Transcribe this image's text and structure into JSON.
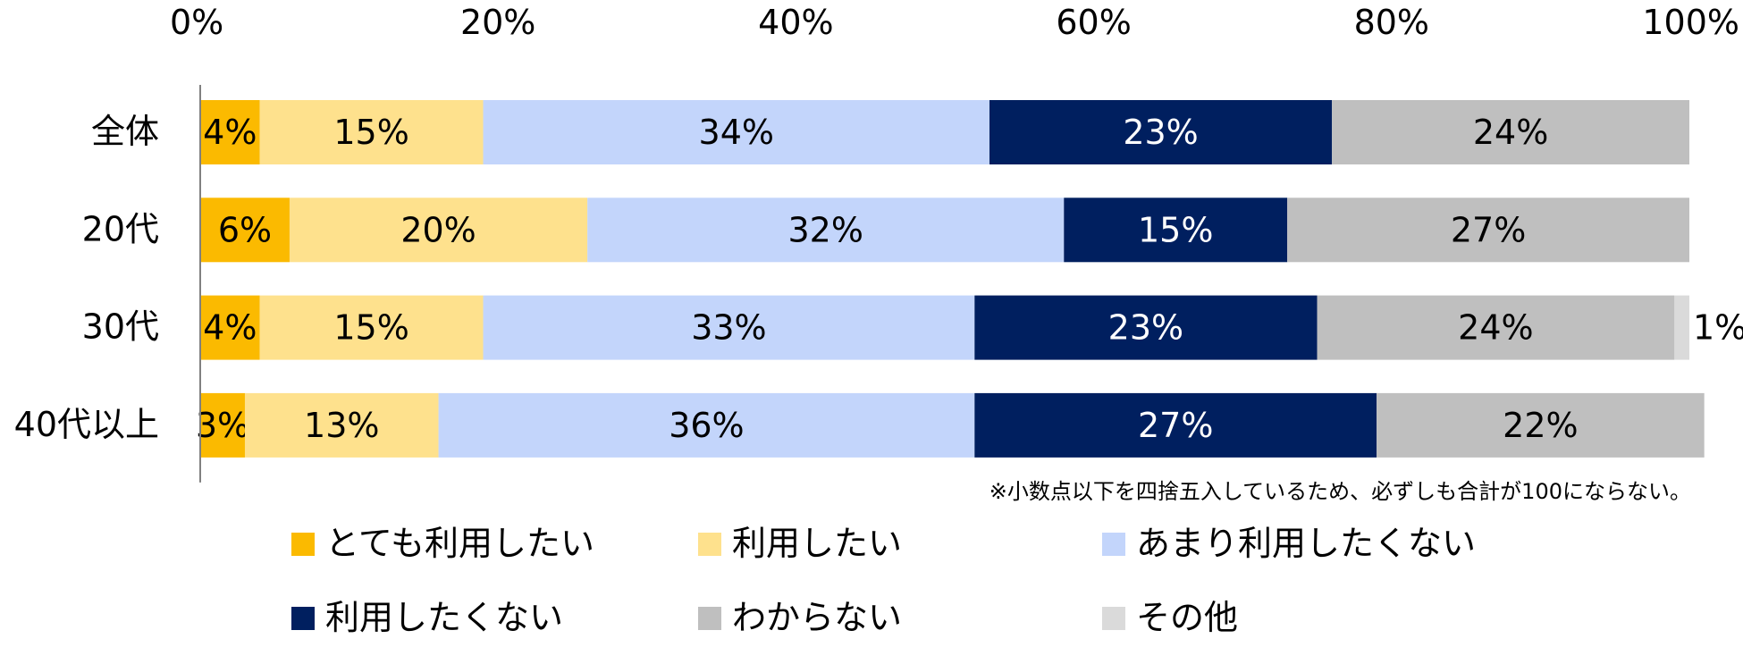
{
  "chart_data": {
    "type": "bar",
    "orientation": "horizontal",
    "stacked": true,
    "xlim": [
      0,
      100
    ],
    "x_ticks": [
      "0%",
      "20%",
      "40%",
      "60%",
      "80%",
      "100%"
    ],
    "tick_values": [
      0,
      20,
      40,
      60,
      80,
      100
    ],
    "axis_position": "top",
    "grid": false,
    "legend_position": "bottom",
    "categories": [
      "全体",
      "20代",
      "30代",
      "40代以上"
    ],
    "series": [
      {
        "name": "とても利用したい",
        "color": "#FBBA00",
        "text_color": "#000000",
        "values": [
          4,
          6,
          4,
          3
        ],
        "labels": [
          "4%",
          "6%",
          "4%",
          "3%"
        ]
      },
      {
        "name": "利用したい",
        "color": "#FEE18D",
        "text_color": "#000000",
        "values": [
          15,
          20,
          15,
          13
        ],
        "labels": [
          "15%",
          "20%",
          "15%",
          "13%"
        ]
      },
      {
        "name": "あまり利用したくない",
        "color": "#C3D5FB",
        "text_color": "#000000",
        "values": [
          34,
          32,
          33,
          36
        ],
        "labels": [
          "34%",
          "32%",
          "33%",
          "36%"
        ]
      },
      {
        "name": "利用したくない",
        "color": "#001F5F",
        "text_color": "#ffffff",
        "values": [
          23,
          15,
          23,
          27
        ],
        "labels": [
          "23%",
          "15%",
          "23%",
          "27%"
        ]
      },
      {
        "name": "わからない",
        "color": "#BFBFBF",
        "text_color": "#000000",
        "values": [
          24,
          27,
          24,
          22
        ],
        "labels": [
          "24%",
          "27%",
          "24%",
          "22%"
        ]
      },
      {
        "name": "その他",
        "color": "#DADADA",
        "text_color": "#000000",
        "values": [
          0,
          0,
          1,
          0
        ],
        "labels": [
          "",
          "",
          "1%",
          ""
        ]
      }
    ],
    "annotation": "※小数点以下を四捨五入しているため、必ずしも合計が100にならない。"
  }
}
